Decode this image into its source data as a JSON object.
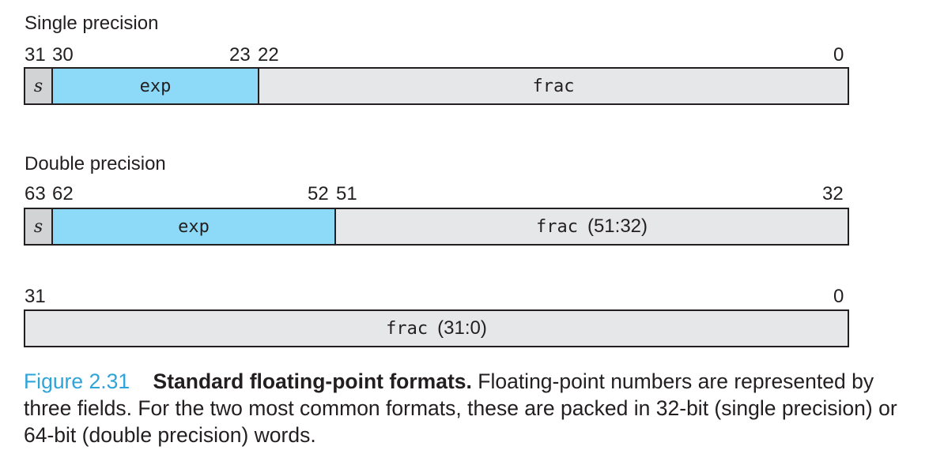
{
  "single": {
    "title": "Single precision",
    "bits": {
      "b31": "31",
      "b30": "30",
      "b23": "23",
      "b22": "22",
      "b0": "0"
    },
    "fields": {
      "sign": "s",
      "exp": "exp",
      "frac": "frac"
    }
  },
  "double": {
    "title": "Double precision",
    "upper": {
      "bits": {
        "b63": "63",
        "b62": "62",
        "b52": "52",
        "b51": "51",
        "b32": "32"
      },
      "fields": {
        "sign": "s",
        "exp": "exp",
        "frac": "frac",
        "frac_range": "(51:32)"
      }
    },
    "lower": {
      "bits": {
        "b31": "31",
        "b0": "0"
      },
      "fields": {
        "frac": "frac",
        "frac_range": "(31:0)"
      }
    }
  },
  "caption": {
    "figure_number": "Figure 2.31",
    "title": "Standard floating-point formats.",
    "body": "Floating-point numbers are represented by three fields. For the two most common formats, these are packed in 32-bit (single precision) or 64-bit (double precision) words."
  },
  "colors": {
    "sign_fill": "#d1d3d4",
    "exp_fill": "#8cd9f8",
    "frac_fill": "#e6e7e8",
    "figure_number": "#2fa4d9"
  }
}
